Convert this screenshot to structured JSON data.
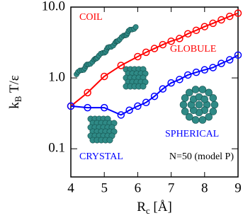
{
  "chart_data": {
    "type": "line",
    "xlabel": {
      "main": "R",
      "sub": "c",
      "rest": " [Å]"
    },
    "ylabel": {
      "main": "k",
      "sub": "B",
      "rest": " T/ε"
    },
    "log_y": true,
    "xlim": [
      4,
      9
    ],
    "xticks": [
      4,
      5,
      6,
      7,
      8,
      9
    ],
    "ylim": [
      0.04,
      10
    ],
    "yticks": [
      {
        "value": 0.1,
        "label": "0.1"
      },
      {
        "value": 1,
        "label": "1.0"
      },
      {
        "value": 10,
        "label": "10.0"
      }
    ],
    "series": [
      {
        "color": "#ff0000",
        "x": [
          4,
          4.5,
          5,
          5.5,
          6,
          6.25,
          6.5,
          6.75,
          7,
          7.25,
          7.5,
          7.75,
          8,
          8.25,
          8.5,
          8.75,
          9
        ],
        "values": [
          0.4,
          0.62,
          1.05,
          1.5,
          2.0,
          2.3,
          2.6,
          2.95,
          3.3,
          3.6,
          4.2,
          4.7,
          5.3,
          5.9,
          6.6,
          7.4,
          8.2
        ]
      },
      {
        "color": "#0000ff",
        "x": [
          4,
          4.5,
          5,
          5.5,
          5.75,
          6,
          6.25,
          6.5,
          6.75,
          7,
          7.25,
          7.5,
          7.75,
          8,
          8.25,
          8.5,
          8.75,
          9
        ],
        "values": [
          0.4,
          0.38,
          0.38,
          0.3,
          0.35,
          0.4,
          0.45,
          0.55,
          0.7,
          0.85,
          0.95,
          1.1,
          1.2,
          1.3,
          1.4,
          1.6,
          1.8,
          2.1
        ]
      }
    ],
    "annotations": [
      {
        "text": "COIL",
        "color": "#ff0000"
      },
      {
        "text": "GLOBULE",
        "color": "#ff0000"
      },
      {
        "text": "SPHERICAL",
        "color": "#0000ff"
      },
      {
        "text": "CRYSTAL",
        "color": "#0000ff"
      },
      {
        "text": "N=50 (model P)",
        "color": "#000000"
      }
    ]
  }
}
